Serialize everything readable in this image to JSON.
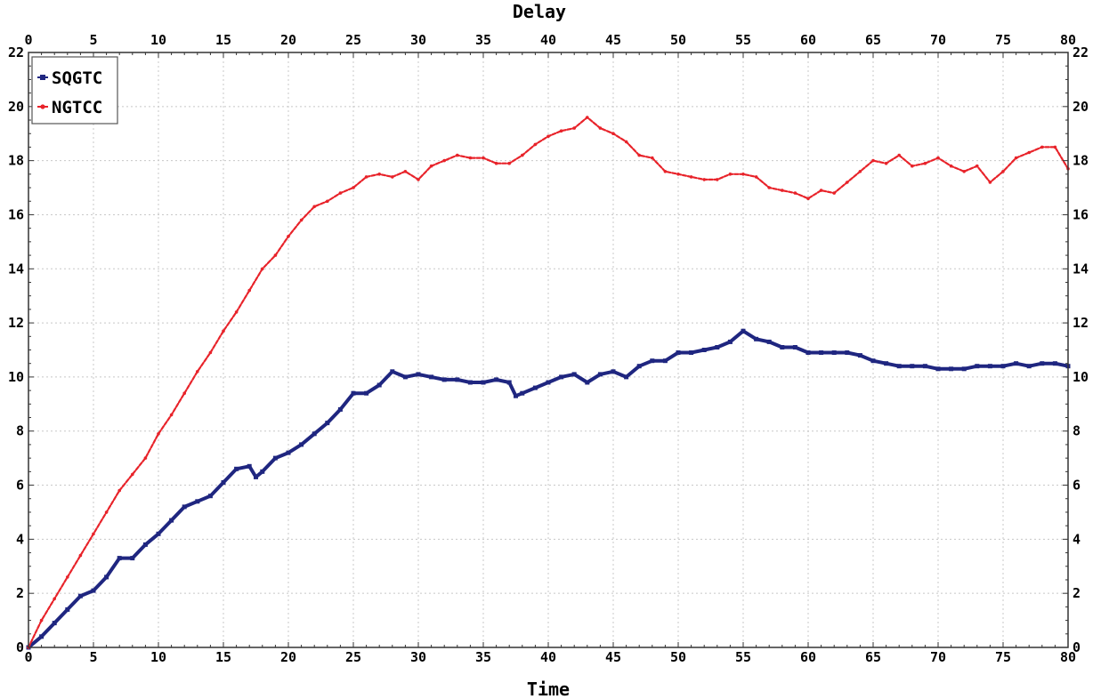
{
  "chart_data": {
    "type": "line",
    "title": "",
    "top_label": "Delay",
    "xlabel": "Time",
    "ylabel": "",
    "xlim": [
      0,
      80
    ],
    "ylim": [
      0,
      22
    ],
    "xticks": [
      0,
      5,
      10,
      15,
      20,
      25,
      30,
      35,
      40,
      45,
      50,
      55,
      60,
      65,
      70,
      75,
      80
    ],
    "yticks": [
      0,
      2,
      4,
      6,
      8,
      10,
      12,
      14,
      16,
      18,
      20,
      22
    ],
    "grid": true,
    "legend_position": "top-left",
    "series": [
      {
        "name": "SQGTC",
        "color": "#1f2680",
        "marker": "square",
        "x": [
          0,
          1,
          2,
          3,
          4,
          5,
          6,
          7,
          8,
          9,
          10,
          11,
          12,
          13,
          14,
          15,
          16,
          17,
          17.5,
          18,
          19,
          20,
          21,
          22,
          23,
          24,
          25,
          26,
          27,
          28,
          29,
          30,
          31,
          32,
          33,
          34,
          35,
          36,
          37,
          37.5,
          38,
          39,
          40,
          41,
          42,
          43,
          44,
          45,
          46,
          47,
          48,
          49,
          50,
          51,
          52,
          53,
          54,
          55,
          56,
          57,
          58,
          59,
          60,
          61,
          62,
          63,
          64,
          65,
          66,
          67,
          68,
          69,
          70,
          71,
          72,
          73,
          74,
          75,
          76,
          77,
          78,
          79,
          80
        ],
        "y": [
          0,
          0.4,
          0.9,
          1.4,
          1.9,
          2.1,
          2.6,
          3.3,
          3.3,
          3.8,
          4.2,
          4.7,
          5.2,
          5.4,
          5.6,
          6.1,
          6.6,
          6.7,
          6.3,
          6.5,
          7.0,
          7.2,
          7.5,
          7.9,
          8.3,
          8.8,
          9.4,
          9.4,
          9.7,
          10.2,
          10.0,
          10.1,
          10.0,
          9.9,
          9.9,
          9.8,
          9.8,
          9.9,
          9.8,
          9.3,
          9.4,
          9.6,
          9.8,
          10.0,
          10.1,
          9.8,
          10.1,
          10.2,
          10.0,
          10.4,
          10.6,
          10.6,
          10.9,
          10.9,
          11.0,
          11.1,
          11.3,
          11.7,
          11.4,
          11.3,
          11.1,
          11.1,
          10.9,
          10.9,
          10.9,
          10.9,
          10.8,
          10.6,
          10.5,
          10.4,
          10.4,
          10.4,
          10.3,
          10.3,
          10.3,
          10.4,
          10.4,
          10.4,
          10.5,
          10.4,
          10.5,
          10.5,
          10.4
        ]
      },
      {
        "name": "NGTCC",
        "color": "#e8232a",
        "marker": "circle",
        "x": [
          0,
          1,
          2,
          3,
          4,
          5,
          6,
          7,
          8,
          9,
          10,
          11,
          12,
          13,
          14,
          15,
          16,
          17,
          18,
          19,
          20,
          21,
          22,
          23,
          24,
          25,
          26,
          27,
          28,
          29,
          30,
          31,
          32,
          33,
          34,
          35,
          36,
          37,
          38,
          39,
          40,
          41,
          42,
          43,
          44,
          45,
          46,
          47,
          48,
          49,
          50,
          51,
          52,
          53,
          54,
          55,
          56,
          57,
          58,
          59,
          60,
          61,
          62,
          63,
          64,
          65,
          66,
          67,
          68,
          69,
          70,
          71,
          72,
          73,
          74,
          75,
          76,
          77,
          78,
          79,
          80
        ],
        "y": [
          0,
          1.0,
          1.8,
          2.6,
          3.4,
          4.2,
          5.0,
          5.8,
          6.4,
          7.0,
          7.9,
          8.6,
          9.4,
          10.2,
          10.9,
          11.7,
          12.4,
          13.2,
          14.0,
          14.5,
          15.2,
          15.8,
          16.3,
          16.5,
          16.8,
          17.0,
          17.4,
          17.5,
          17.4,
          17.6,
          17.3,
          17.8,
          18.0,
          18.2,
          18.1,
          18.1,
          17.9,
          17.9,
          18.2,
          18.6,
          18.9,
          19.1,
          19.2,
          19.6,
          19.2,
          19.0,
          18.7,
          18.2,
          18.1,
          17.6,
          17.5,
          17.4,
          17.3,
          17.3,
          17.5,
          17.5,
          17.4,
          17.0,
          16.9,
          16.8,
          16.6,
          16.9,
          16.8,
          17.2,
          17.6,
          18.0,
          17.9,
          18.2,
          17.8,
          17.9,
          18.1,
          17.8,
          17.6,
          17.8,
          17.2,
          17.6,
          18.1,
          18.3,
          18.5,
          18.5,
          17.7
        ]
      }
    ]
  }
}
